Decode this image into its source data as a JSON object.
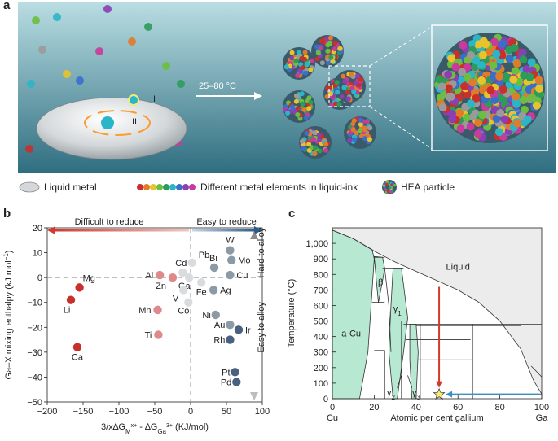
{
  "panel_a": {
    "letter": "a",
    "arrow_label": "25–80 °C",
    "roman_one": "I",
    "roman_two": "II",
    "legend": {
      "liquid_metal": "Liquid metal",
      "elements": "Different metal elements in liquid-ink",
      "hea": "HEA particle"
    },
    "colors": {
      "background_top": "#b9dde2",
      "background_bottom": "#2f6e80",
      "element_palette": [
        "#c9302c",
        "#e07b2a",
        "#e8c32b",
        "#6cbf3e",
        "#2c9c5a",
        "#2bb5c9",
        "#3a6fc9",
        "#8a3fb5",
        "#c93a9c",
        "#9a9a9a"
      ]
    }
  },
  "chart_data": [
    {
      "type": "scatter",
      "letter": "b",
      "title": "",
      "xlabel": "3/x∆G",
      "xlabel_sub1": "M",
      "xlabel_sup": "x+",
      "xlabel_mid": " - ∆G",
      "xlabel_sub2": "Ga",
      "xlabel_sup2": "3+",
      "xlabel_tail": " (KJ/mol)",
      "ylabel": "Ga–X mixing enthalpy (kJ mol",
      "ylabel_sup": "−1",
      "ylabel_tail": ")",
      "xlim": [
        -200,
        100
      ],
      "ylim": [
        -50,
        20
      ],
      "xticks": [
        -200,
        -150,
        -100,
        -50,
        0,
        50,
        100
      ],
      "xtick_labels": [
        "−200",
        "−150",
        "−100",
        "−50",
        "0",
        "50",
        "100"
      ],
      "yticks": [
        -50,
        -40,
        -30,
        -20,
        -10,
        0,
        10,
        20
      ],
      "ytick_labels": [
        "−50",
        "−40",
        "−30",
        "−20",
        "−10",
        "0",
        "10",
        "20"
      ],
      "annotations": {
        "difficult": "Difficult to reduce",
        "easy_reduce": "Easy to reduce",
        "hard_alloy": "Hard to alloy",
        "easy_alloy": "Easy to alloy"
      },
      "colors": {
        "dark_red": "#c9302c",
        "pink": "#e0898a",
        "light_gray": "#d9dcde",
        "mid_gray": "#8b9aa5",
        "dark_blue": "#4a607f",
        "arrow_red": "#d23a2e",
        "arrow_blue": "#2d5a8a"
      },
      "points": [
        {
          "label": "Mg",
          "x": -155,
          "y": -4,
          "color": "dark_red"
        },
        {
          "label": "Li",
          "x": -167,
          "y": -9,
          "color": "dark_red"
        },
        {
          "label": "Ca",
          "x": -158,
          "y": -28,
          "color": "dark_red"
        },
        {
          "label": "Al",
          "x": -43,
          "y": 1,
          "color": "pink"
        },
        {
          "label": "Mn",
          "x": -46,
          "y": -13,
          "color": "pink"
        },
        {
          "label": "Ti",
          "x": -45,
          "y": -23,
          "color": "pink"
        },
        {
          "label": "Zn",
          "x": -25,
          "y": 0,
          "color": "pink"
        },
        {
          "label": "Cd",
          "x": -11,
          "y": 2,
          "color": "light_gray"
        },
        {
          "label": "Ga",
          "x": -2,
          "y": 0,
          "color": "light_gray"
        },
        {
          "label": "V",
          "x": -10,
          "y": -5,
          "color": "light_gray"
        },
        {
          "label": "Co",
          "x": -3,
          "y": -10,
          "color": "light_gray"
        },
        {
          "label": "Pb",
          "x": 2,
          "y": 6,
          "color": "light_gray"
        },
        {
          "label": "Fe",
          "x": 15,
          "y": -2,
          "color": "light_gray"
        },
        {
          "label": "Ag",
          "x": 32,
          "y": -5,
          "color": "mid_gray"
        },
        {
          "label": "Bi",
          "x": 33,
          "y": 4,
          "color": "mid_gray"
        },
        {
          "label": "W",
          "x": 55,
          "y": 11,
          "color": "mid_gray"
        },
        {
          "label": "Mo",
          "x": 57,
          "y": 7,
          "color": "mid_gray"
        },
        {
          "label": "Cu",
          "x": 55,
          "y": 1,
          "color": "mid_gray"
        },
        {
          "label": "Ni",
          "x": 35,
          "y": -15,
          "color": "mid_gray"
        },
        {
          "label": "Au",
          "x": 55,
          "y": -19,
          "color": "mid_gray"
        },
        {
          "label": "Ir",
          "x": 67,
          "y": -21,
          "color": "dark_blue"
        },
        {
          "label": "Rh",
          "x": 55,
          "y": -25,
          "color": "dark_blue"
        },
        {
          "label": "Pt",
          "x": 62,
          "y": -38,
          "color": "dark_blue"
        },
        {
          "label": "Pd",
          "x": 64,
          "y": -42,
          "color": "dark_blue"
        }
      ]
    },
    {
      "type": "phase-diagram",
      "letter": "c",
      "title": "",
      "xlabel": "Atomic per cent gallium",
      "ylabel": "Temperature (°C)",
      "xlim": [
        0,
        100
      ],
      "ylim": [
        0,
        1100
      ],
      "xticks": [
        0,
        20,
        40,
        60,
        80,
        100
      ],
      "yticks": [
        0,
        100,
        200,
        300,
        400,
        500,
        600,
        700,
        800,
        900,
        1000
      ],
      "ytick_labels": [
        "0",
        "100",
        "200",
        "300",
        "400",
        "500",
        "600",
        "700",
        "800",
        "900",
        "1,000"
      ],
      "end_labels": {
        "left": "Cu",
        "right": "Ga"
      },
      "regions": {
        "liquid": "Liquid",
        "a_cu": "a-Cu",
        "beta": "β",
        "gamma1": "γ",
        "gamma1_sub": "1",
        "gamma2": "γ",
        "gamma2_sub": "2",
        "gamma3": "γ",
        "gamma3_sub": "3"
      },
      "colors": {
        "phase_fill": "#b7e8d2",
        "liquid_fill": "#ececec",
        "line": "#333333",
        "star": "#f3ea7a",
        "arrow_red": "#d23a2e",
        "arrow_blue": "#3b8fc4"
      },
      "marker": {
        "x": 51,
        "y": 28
      },
      "liquidus": [
        [
          0,
          1085
        ],
        [
          10,
          1030
        ],
        [
          20,
          950
        ],
        [
          25,
          915
        ],
        [
          30,
          880
        ],
        [
          40,
          820
        ],
        [
          50,
          760
        ],
        [
          60,
          700
        ],
        [
          70,
          620
        ],
        [
          80,
          500
        ],
        [
          90,
          320
        ],
        [
          96,
          120
        ],
        [
          100,
          30
        ]
      ]
    }
  ]
}
